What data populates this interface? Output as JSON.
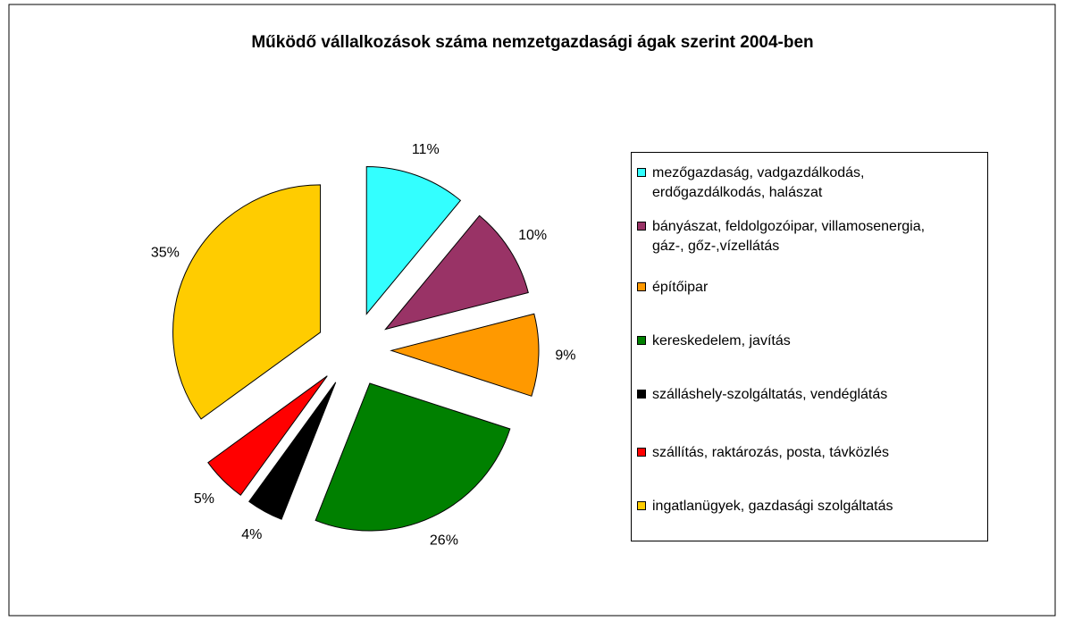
{
  "chart_data": {
    "type": "pie",
    "title": "Működő vállalkozások száma nemzetgazdasági ágak szerint 2004-ben",
    "categories": [
      "mezőgazdaság, vadgazdálkodás, erdőgazdálkodás, halászat",
      "bányászat, feldolgozóipar, villamosenergia, gáz-, gőz-,vízellátás",
      "építőipar",
      "kereskedelem, javítás",
      "szálláshely-szolgáltatás, vendéglátás",
      "szállítás, raktározás, posta, távközlés",
      "ingatlanügyek, gazdasági szolgáltatás"
    ],
    "values": [
      11,
      10,
      9,
      26,
      4,
      5,
      35
    ],
    "value_labels": [
      "11%",
      "10%",
      "9%",
      "26%",
      "4%",
      "5%",
      "35%"
    ],
    "colors": [
      "#33ffff",
      "#993366",
      "#ff9900",
      "#008000",
      "#000000",
      "#ff0000",
      "#ffcc00"
    ],
    "legend": "right"
  }
}
